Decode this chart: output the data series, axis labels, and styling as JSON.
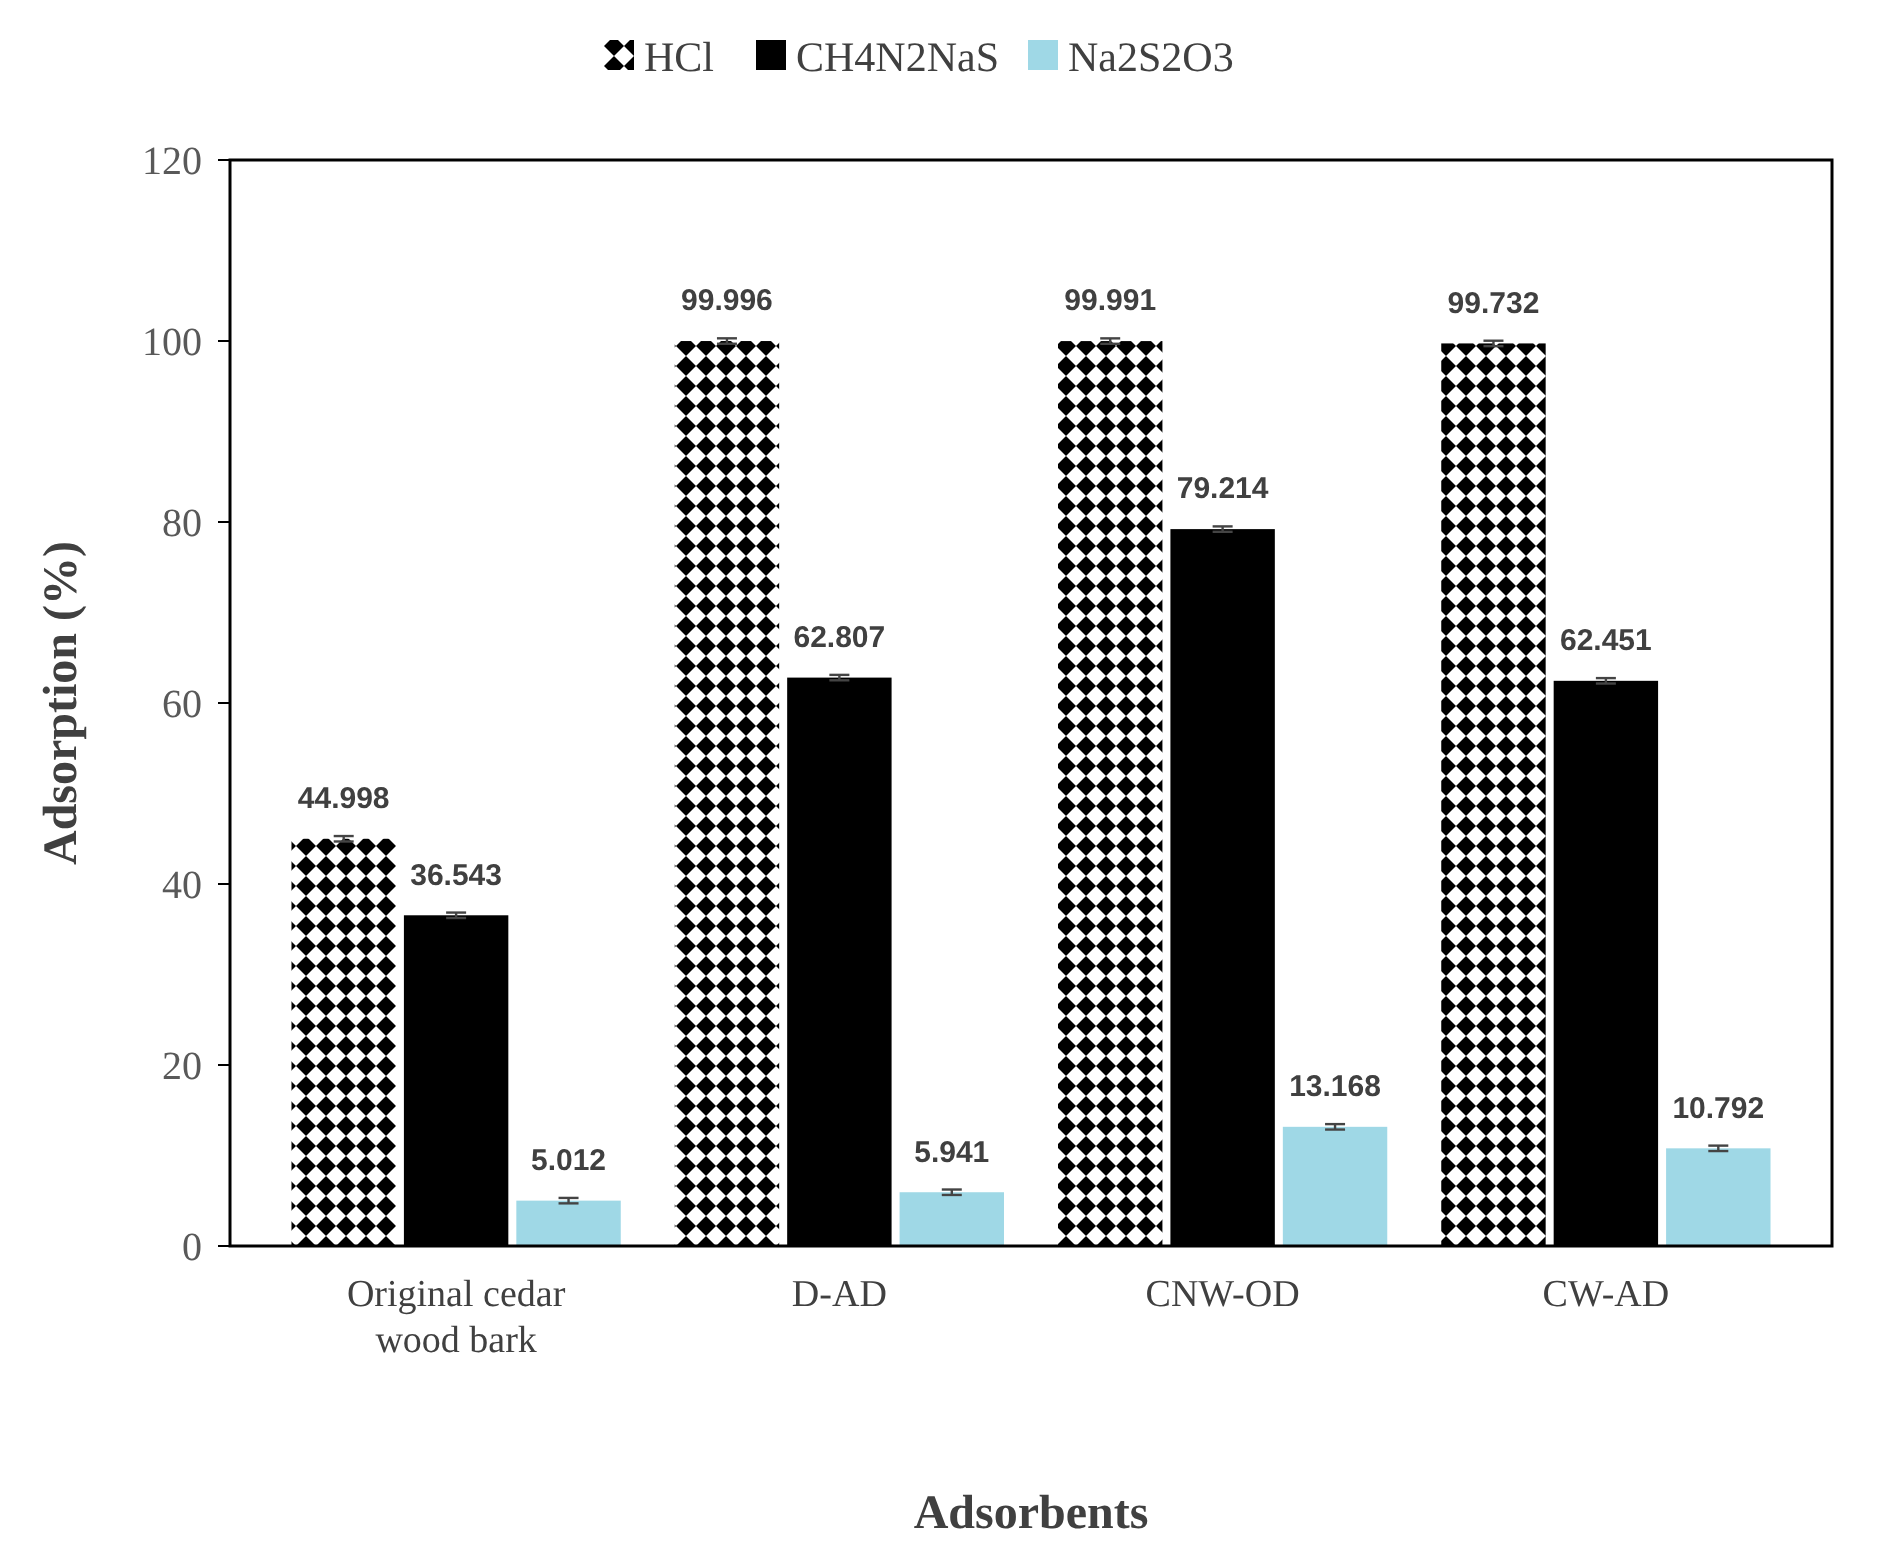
{
  "chart_data": {
    "type": "bar",
    "xlabel": "Adsorbents",
    "ylabel": "Adsorption (%)",
    "categories": [
      "Original cedar wood bark",
      "D-AD",
      "CNW-OD",
      "CW-AD"
    ],
    "series": [
      {
        "name": "HCl",
        "color": "#000000",
        "values": [
          44.998,
          99.996,
          99.991,
          99.732
        ],
        "errors": [
          0.3,
          0.3,
          0.3,
          0.3
        ]
      },
      {
        "name": "CH4N2NaS",
        "color": "#000000",
        "values": [
          36.543,
          62.807,
          79.214,
          62.451
        ],
        "errors": [
          0.3,
          0.3,
          0.3,
          0.3
        ]
      },
      {
        "name": "Na2S2O3",
        "color": "#9fd8e6",
        "values": [
          5.012,
          5.941,
          13.168,
          10.792
        ],
        "errors": [
          0.3,
          0.3,
          0.3,
          0.3
        ]
      }
    ],
    "ylim": [
      0,
      120
    ],
    "yticks": [
      0,
      20,
      40,
      60,
      80,
      100,
      120
    ],
    "grid": false,
    "legend": "top",
    "data_labels": true
  }
}
